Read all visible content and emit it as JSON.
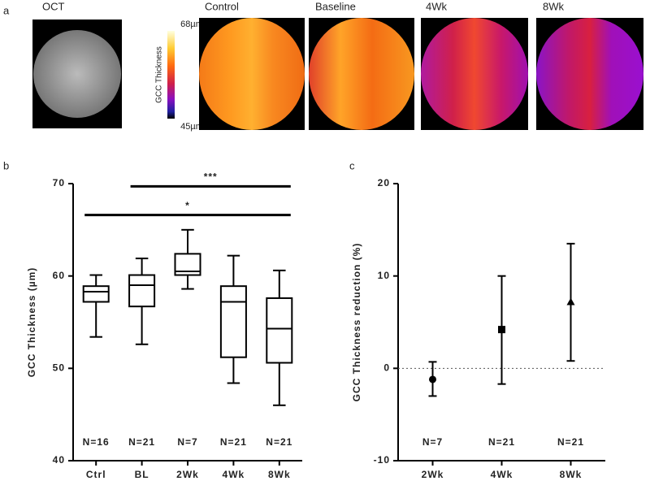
{
  "panel_a": {
    "label": "a",
    "oct_title": "OCT",
    "scale_label": "GCC Thickness",
    "scale_max": "68µm",
    "scale_min": "45µm",
    "maps": [
      "Control",
      "Baseline",
      "4Wk",
      "8Wk"
    ]
  },
  "chart_data": [
    {
      "type": "box",
      "label": "b",
      "ylabel": "GCC Thickness (µm)",
      "categories": [
        "Ctrl",
        "BL",
        "2Wk",
        "4Wk",
        "8Wk"
      ],
      "min": [
        53.4,
        52.6,
        58.6,
        48.4,
        46.0
      ],
      "q1": [
        57.2,
        56.7,
        60.1,
        51.2,
        50.6
      ],
      "median": [
        58.3,
        59.0,
        60.5,
        57.2,
        54.3
      ],
      "q3": [
        58.9,
        60.1,
        62.4,
        58.9,
        57.6
      ],
      "max": [
        60.1,
        61.9,
        65.0,
        62.2,
        60.6
      ],
      "n_labels": [
        "N=16",
        "N=21",
        "N=7",
        "N=21",
        "N=21"
      ],
      "significance": [
        {
          "label": "***",
          "from": "BL",
          "to": "8Wk",
          "y": 69.7
        },
        {
          "label": "*",
          "from": "Ctrl",
          "to": "8Wk",
          "y": 66.6
        }
      ],
      "ylim": [
        40,
        70
      ],
      "yticks": [
        40,
        50,
        60,
        70
      ],
      "color": "#000000"
    },
    {
      "type": "errorbar",
      "label": "c",
      "ylabel": "GCC Thickness reduction (%)",
      "categories": [
        "2Wk",
        "4Wk",
        "8Wk"
      ],
      "values": [
        -1.2,
        4.2,
        7.2
      ],
      "low": [
        -3.0,
        -1.7,
        0.8
      ],
      "high": [
        0.7,
        10.0,
        13.5
      ],
      "markers": [
        "circle",
        "square",
        "triangle"
      ],
      "n_labels": [
        "N=7",
        "N=21",
        "N=21"
      ],
      "ylim": [
        -10,
        20
      ],
      "yticks": [
        -10,
        0,
        10,
        20
      ],
      "zero_line": true,
      "color": "#000000"
    }
  ]
}
